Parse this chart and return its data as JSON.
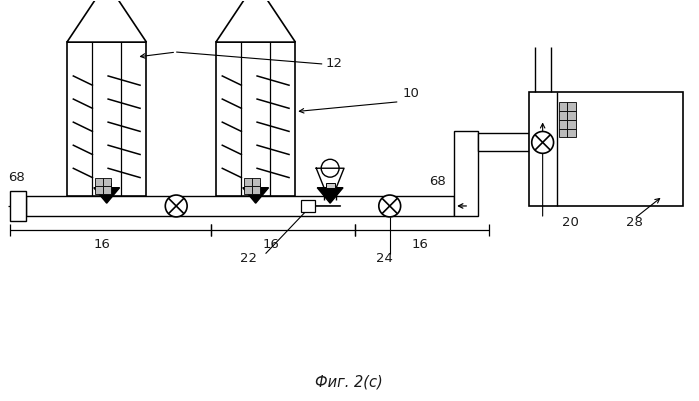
{
  "title": "Фиг. 2(с)",
  "bg_color": "#ffffff",
  "line_color": "#1a1a1a",
  "fig_width": 6.99,
  "fig_height": 4.01,
  "dpi": 100
}
